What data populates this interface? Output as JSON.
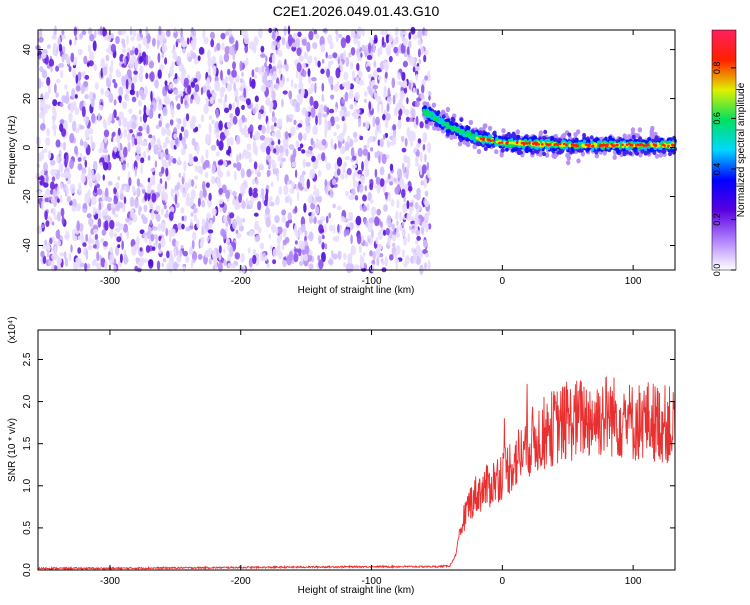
{
  "title": "C2E1.2026.049.01.43.G10",
  "chart_data": [
    {
      "type": "heatmap",
      "xlabel": "Height of straight line (km)",
      "ylabel": "Frequency (Hz)",
      "xlim": [
        -355,
        132
      ],
      "ylim": [
        -50,
        48
      ],
      "xticks": [
        -300,
        -200,
        -100,
        0,
        100
      ],
      "yticks": [
        -40,
        -20,
        0,
        20,
        40
      ],
      "signal_onset_km": -60,
      "signal_trace": {
        "x": [
          -60,
          -45,
          -30,
          -20,
          0,
          50,
          100,
          132
        ],
        "y": [
          15,
          10,
          6,
          4,
          2,
          1,
          1,
          1
        ]
      },
      "colorbar": {
        "label": "Normalized spectral amplitude",
        "range": [
          0,
          0.95
        ],
        "ticks": [
          0.0,
          0.2,
          0.4,
          0.6,
          0.8
        ],
        "tick_labels": [
          "0.0",
          "0.2",
          "0.4",
          "0.6",
          "0.8"
        ],
        "colors": [
          "#ffffff",
          "#b080ff",
          "#5a00e0",
          "#0000ff",
          "#00d8ff",
          "#00e060",
          "#e0f000",
          "#ff2000",
          "#ff2060"
        ]
      },
      "grid": false
    },
    {
      "type": "line",
      "xlabel": "Height of straight line (km)",
      "ylabel": "SNR (10 * v/v)",
      "multiplier": "(x10⁴)",
      "xlim": [
        -355,
        132
      ],
      "ylim": [
        0,
        2.85
      ],
      "xticks": [
        -300,
        -200,
        -100,
        0,
        100
      ],
      "yticks": [
        0.0,
        0.5,
        1.0,
        1.5,
        2.0,
        2.5
      ],
      "ytick_labels": [
        "0.0",
        "0.5",
        "1.0",
        "1.5",
        "2.0",
        "2.5"
      ],
      "color": "#e83030",
      "series": [
        {
          "x": [
            -355,
            -300,
            -200,
            -100,
            -50,
            -40,
            -35,
            -30,
            -25,
            -20,
            -10,
            0,
            10,
            20,
            30,
            40,
            50,
            60,
            70,
            80,
            90,
            100,
            110,
            120,
            132
          ],
          "values": [
            0.02,
            0.02,
            0.03,
            0.04,
            0.04,
            0.05,
            0.2,
            0.6,
            0.8,
            0.9,
            1.0,
            1.15,
            1.3,
            1.5,
            1.6,
            1.7,
            1.75,
            1.8,
            1.8,
            1.85,
            1.8,
            1.75,
            1.78,
            1.75,
            1.7
          ]
        }
      ],
      "grid": false
    }
  ]
}
